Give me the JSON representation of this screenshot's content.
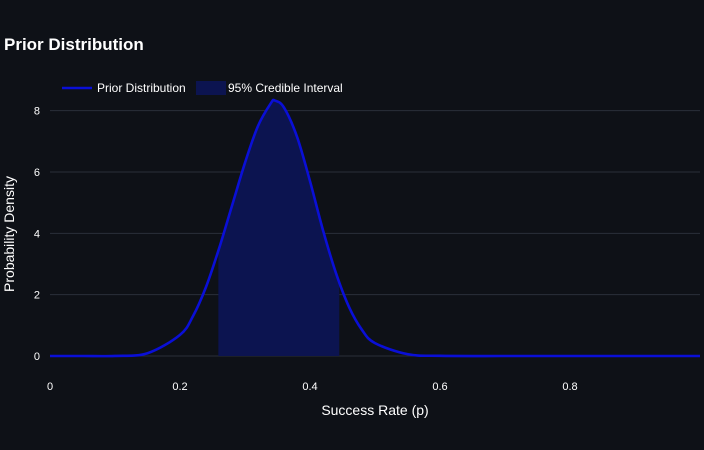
{
  "chart_data": {
    "type": "area",
    "title": "Prior Distribution",
    "xlabel": "Success Rate (p)",
    "ylabel": "Probability Density",
    "xlim": [
      0,
      1
    ],
    "ylim": [
      0,
      9
    ],
    "x_ticks": [
      0,
      0.2,
      0.4,
      0.6,
      0.8
    ],
    "x_tick_labels": [
      "0",
      "0.2",
      "0.4",
      "0.6",
      "0.8"
    ],
    "y_ticks": [
      0,
      2,
      4,
      6,
      8
    ],
    "y_tick_labels": [
      "0",
      "2",
      "4",
      "6",
      "8"
    ],
    "grid": true,
    "legend_position": "top-left",
    "series": [
      {
        "name": "Prior Distribution",
        "kind": "line",
        "color": "#0a0fd6",
        "x": [
          0,
          0.05,
          0.1,
          0.15,
          0.2,
          0.22,
          0.24,
          0.26,
          0.28,
          0.3,
          0.32,
          0.34,
          0.346,
          0.36,
          0.38,
          0.4,
          0.42,
          0.44,
          0.46,
          0.48,
          0.5,
          0.55,
          0.6,
          0.7,
          0.8,
          0.9,
          1.0
        ],
        "y": [
          0,
          0,
          0.003,
          0.09,
          0.69,
          1.3,
          2.25,
          3.5,
          4.9,
          6.3,
          7.5,
          8.25,
          8.33,
          8.1,
          7.15,
          5.7,
          4.1,
          2.7,
          1.6,
          0.85,
          0.42,
          0.06,
          0.005,
          0,
          0,
          0,
          0
        ]
      },
      {
        "name": "95% Credible Interval",
        "kind": "band",
        "color": "#0c1450",
        "range": [
          0.259,
          0.445
        ]
      }
    ]
  }
}
